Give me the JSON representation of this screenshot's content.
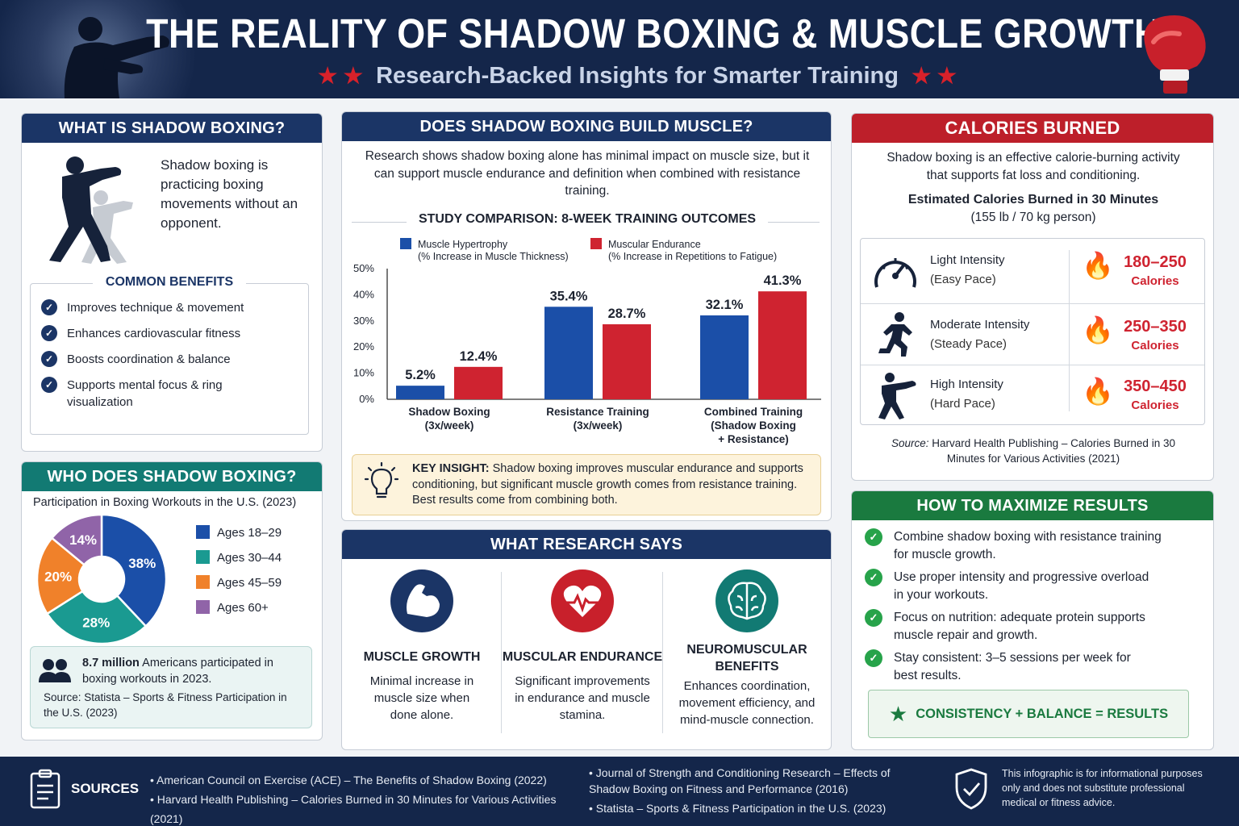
{
  "header": {
    "title": "THE REALITY OF SHADOW BOXING & MUSCLE GROWTH",
    "subtitle": "Research-Backed Insights for Smarter Training",
    "stars": "★ ★",
    "icon_left": "boxer-silhouette-icon",
    "icon_right": "boxing-glove-icon"
  },
  "what_is": {
    "title": "WHAT IS SHADOW BOXING?",
    "description": "Shadow boxing is practicing boxing movements without an opponent.",
    "benefits_title": "COMMON BENEFITS",
    "benefits": [
      "Improves technique & movement",
      "Enhances cardiovascular fitness",
      "Boosts coordination & balance",
      "Supports mental focus & ring visualization"
    ]
  },
  "who": {
    "title": "WHO DOES SHADOW BOXING?",
    "subtitle": "Participation in Boxing Workouts in the U.S. (2023)",
    "stat_bold": "8.7 million",
    "stat_rest": " Americans participated in boxing workouts in 2023.",
    "source": "Source: Statista – Sports & Fitness Participation in the U.S. (2023)"
  },
  "build": {
    "title": "DOES SHADOW BOXING BUILD MUSCLE?",
    "intro": "Research shows shadow boxing alone has minimal impact on muscle size, but it can support muscle endurance and definition when combined with resistance training.",
    "study_title": "STUDY COMPARISON: 8-WEEK TRAINING OUTCOMES",
    "insight_label": "KEY INSIGHT:",
    "insight_text": " Shadow boxing improves muscular endurance and supports conditioning, but significant muscle growth comes from resistance training. Best results come from combining both."
  },
  "research": {
    "title": "WHAT RESEARCH SAYS",
    "items": [
      {
        "icon": "flexed-arm-icon",
        "title": "MUSCLE GROWTH",
        "text": "Minimal increase in muscle size when done alone."
      },
      {
        "icon": "heart-pulse-icon",
        "title": "MUSCULAR ENDURANCE",
        "text": "Significant improvements in endurance and muscle stamina."
      },
      {
        "icon": "brain-icon",
        "title": "NEUROMUSCULAR BENEFITS",
        "text": "Enhances coordination, movement efficiency, and mind-muscle connection."
      }
    ]
  },
  "calories": {
    "title": "CALORIES BURNED",
    "intro": "Shadow boxing is an effective calorie-burning activity that supports fat loss and conditioning.",
    "est_title": "Estimated Calories Burned in 30 Minutes",
    "est_sub": "(155 lb / 70 kg person)",
    "rows": [
      {
        "icon": "speedometer-icon",
        "level": "Light Intensity",
        "pace": "(Easy Pace)",
        "range": "180–250",
        "unit": "Calories"
      },
      {
        "icon": "running-figure-icon",
        "level": "Moderate Intensity",
        "pace": "(Steady Pace)",
        "range": "250–350",
        "unit": "Calories"
      },
      {
        "icon": "boxer-icon",
        "level": "High Intensity",
        "pace": "(Hard Pace)",
        "range": "350–450",
        "unit": "Calories"
      }
    ],
    "source_label": "Source:",
    "source_text": " Harvard Health Publishing – Calories Burned in 30 Minutes for Various Activities (2021)"
  },
  "maximize": {
    "title": "HOW TO MAXIMIZE RESULTS",
    "items": [
      "Combine shadow boxing with resistance training for muscle growth.",
      "Use proper intensity and progressive overload in your workouts.",
      "Focus on nutrition: adequate protein supports muscle repair and growth.",
      "Stay consistent: 3–5 sessions per week for best results."
    ],
    "banner": "CONSISTENCY + BALANCE = RESULTS"
  },
  "footer": {
    "sources_label": "SOURCES",
    "col1": [
      "American Council on Exercise (ACE) – The Benefits of Shadow Boxing (2022)",
      "Harvard Health Publishing – Calories Burned in 30 Minutes for Various Activities (2021)"
    ],
    "col2": [
      "Journal of Strength and Conditioning Research – Effects of Shadow Boxing on Fitness and Performance (2016)",
      "Statista – Sports & Fitness Participation in the U.S. (2023)"
    ],
    "disclaimer": "This infographic is for informational purposes only and does not substitute professional medical or fitness advice."
  },
  "chart_data": [
    {
      "type": "bar",
      "title": "STUDY COMPARISON: 8-WEEK TRAINING OUTCOMES",
      "categories": [
        "Shadow Boxing (3x/week)",
        "Resistance Training (3x/week)",
        "Combined Training (Shadow Boxing + Resistance)"
      ],
      "category_lines": [
        [
          "Shadow Boxing",
          "(3x/week)"
        ],
        [
          "Resistance Training",
          "(3x/week)"
        ],
        [
          "Combined Training",
          "(Shadow Boxing",
          "+ Resistance)"
        ]
      ],
      "series": [
        {
          "name": "Muscle Hypertrophy",
          "note": "(% Increase in Muscle Thickness)",
          "color": "#1b4fa8",
          "values": [
            5.2,
            35.4,
            32.1
          ]
        },
        {
          "name": "Muscular Endurance",
          "note": "(% Increase in Repetitions to Fatigue)",
          "color": "#cf2330",
          "values": [
            12.4,
            28.7,
            41.3
          ]
        }
      ],
      "ylim": [
        0,
        50
      ],
      "yticks": [
        0,
        10,
        20,
        30,
        40,
        50
      ],
      "ytick_labels": [
        "0%",
        "10%",
        "20%",
        "30%",
        "40%",
        "50%"
      ],
      "value_labels": [
        [
          "5.2%",
          "35.4%",
          "32.1%"
        ],
        [
          "12.4%",
          "28.7%",
          "41.3%"
        ]
      ],
      "grid": false,
      "legend": "top"
    },
    {
      "type": "pie",
      "title": "Participation in Boxing Workouts in the U.S. (2023)",
      "labels": [
        "Ages 18–29",
        "Ages 30–44",
        "Ages 45–59",
        "Ages 60+"
      ],
      "values": [
        38,
        28,
        20,
        14
      ],
      "value_labels": [
        "38%",
        "28%",
        "20%",
        "14%"
      ],
      "colors": [
        "#1b4fa8",
        "#1a9a91",
        "#f0812a",
        "#9064a8"
      ],
      "legend": "right"
    }
  ]
}
